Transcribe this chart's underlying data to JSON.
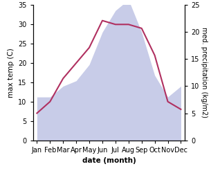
{
  "months": [
    "Jan",
    "Feb",
    "Mar",
    "Apr",
    "May",
    "Jun",
    "Jul",
    "Aug",
    "Sep",
    "Oct",
    "Nov",
    "Dec"
  ],
  "x": [
    1,
    2,
    3,
    4,
    5,
    6,
    7,
    8,
    9,
    10,
    11,
    12
  ],
  "temperature": [
    7,
    10,
    16,
    20,
    24,
    31,
    30,
    30,
    29,
    22,
    10,
    8
  ],
  "precipitation": [
    8,
    8,
    10,
    11,
    14,
    20,
    24,
    26,
    20,
    12,
    8,
    10
  ],
  "temp_color": "#b03060",
  "precip_fill_color": "#c8cce8",
  "temp_ylim": [
    0,
    35
  ],
  "precip_ylim": [
    0,
    25
  ],
  "temp_yticks": [
    0,
    5,
    10,
    15,
    20,
    25,
    30,
    35
  ],
  "precip_yticks": [
    0,
    5,
    10,
    15,
    20,
    25
  ],
  "xlabel": "date (month)",
  "ylabel_left": "max temp (C)",
  "ylabel_right": "med. precipitation (kg/m2)",
  "label_fontsize": 7.5,
  "tick_fontsize": 7,
  "linewidth": 1.5
}
